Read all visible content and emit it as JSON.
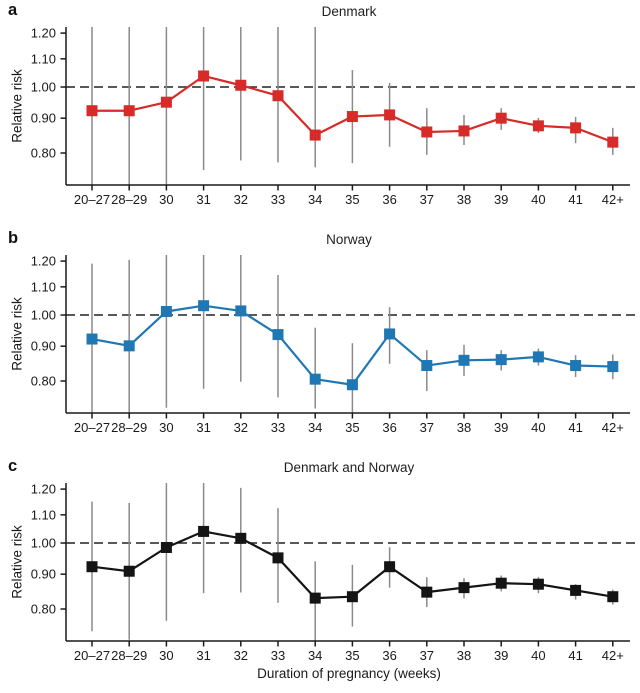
{
  "figure": {
    "xlabel": "Duration of pregnancy (weeks)",
    "ylabel": "Relative risk",
    "background": "#ffffff",
    "axis_color": "#1a1a1a",
    "reference_line_style": "dashed"
  },
  "chart_data": [
    {
      "type": "line",
      "panel_label": "a",
      "title": "Denmark",
      "ylabel": "Relative risk",
      "color": "#d62b28",
      "error_bar_color": "#8a8a8a",
      "marker": "square",
      "reference_line": 1.0,
      "yscale": "log",
      "ylim": [
        0.718,
        1.225
      ],
      "yticks": [
        1.2,
        1.1,
        1.0,
        0.9,
        0.8
      ],
      "ytick_labels": [
        "1.20",
        "1.10",
        "1.00",
        "0.90",
        "0.80"
      ],
      "categories": [
        "20–27",
        "28–29",
        "30",
        "31",
        "32",
        "33",
        "34",
        "35",
        "36",
        "37",
        "38",
        "39",
        "40",
        "41",
        "42+"
      ],
      "values": [
        0.923,
        0.923,
        0.95,
        1.038,
        1.006,
        0.971,
        0.85,
        0.905,
        0.91,
        0.859,
        0.862,
        0.9,
        0.877,
        0.871,
        0.83
      ],
      "ci_lower": [
        0.718,
        0.718,
        0.718,
        0.755,
        0.78,
        0.775,
        0.762,
        0.773,
        0.817,
        0.795,
        0.822,
        0.865,
        0.856,
        0.827,
        0.795
      ],
      "ci_upper": [
        1.225,
        1.225,
        1.225,
        1.225,
        1.225,
        1.225,
        1.225,
        1.059,
        1.014,
        0.931,
        0.91,
        0.931,
        0.901,
        0.904,
        0.871
      ]
    },
    {
      "type": "line",
      "panel_label": "b",
      "title": "Norway",
      "ylabel": "Relative risk",
      "color": "#1f77b4",
      "error_bar_color": "#8a8a8a",
      "marker": "square",
      "reference_line": 1.0,
      "yscale": "log",
      "ylim": [
        0.718,
        1.225
      ],
      "yticks": [
        1.2,
        1.1,
        1.0,
        0.9,
        0.8
      ],
      "ytick_labels": [
        "1.20",
        "1.10",
        "1.00",
        "0.90",
        "0.80"
      ],
      "categories": [
        "20–27",
        "28–29",
        "30",
        "31",
        "32",
        "33",
        "34",
        "35",
        "36",
        "37",
        "38",
        "39",
        "40",
        "41",
        "42+"
      ],
      "values": [
        0.922,
        0.901,
        1.012,
        1.032,
        1.014,
        0.936,
        0.805,
        0.79,
        0.938,
        0.843,
        0.858,
        0.86,
        0.868,
        0.843,
        0.84
      ],
      "ci_lower": [
        0.718,
        0.718,
        0.731,
        0.779,
        0.798,
        0.757,
        0.729,
        0.718,
        0.848,
        0.773,
        0.814,
        0.829,
        0.843,
        0.811,
        0.805
      ],
      "ci_upper": [
        1.19,
        1.205,
        1.225,
        1.225,
        1.225,
        1.145,
        0.958,
        0.909,
        1.027,
        0.888,
        0.904,
        0.888,
        0.893,
        0.873,
        0.875
      ]
    },
    {
      "type": "line",
      "panel_label": "c",
      "title": "Denmark and Norway",
      "ylabel": "Relative risk",
      "color": "#141414",
      "error_bar_color": "#8a8a8a",
      "marker": "square",
      "reference_line": 1.0,
      "yscale": "log",
      "ylim": [
        0.718,
        1.225
      ],
      "yticks": [
        1.2,
        1.1,
        1.0,
        0.9,
        0.8
      ],
      "ytick_labels": [
        "1.20",
        "1.10",
        "1.00",
        "0.90",
        "0.80"
      ],
      "categories": [
        "20–27",
        "28–29",
        "30",
        "31",
        "32",
        "33",
        "34",
        "35",
        "36",
        "37",
        "38",
        "39",
        "40",
        "41",
        "42+"
      ],
      "values": [
        0.923,
        0.909,
        0.985,
        1.04,
        1.016,
        0.951,
        0.83,
        0.834,
        0.923,
        0.847,
        0.86,
        0.873,
        0.87,
        0.852,
        0.834
      ],
      "ci_lower": [
        0.742,
        0.721,
        0.769,
        0.844,
        0.846,
        0.817,
        0.718,
        0.754,
        0.86,
        0.805,
        0.829,
        0.849,
        0.844,
        0.826,
        0.812
      ],
      "ci_upper": [
        1.15,
        1.145,
        1.225,
        1.225,
        1.205,
        1.125,
        0.94,
        0.929,
        0.986,
        0.891,
        0.888,
        0.896,
        0.891,
        0.87,
        0.854
      ]
    }
  ]
}
